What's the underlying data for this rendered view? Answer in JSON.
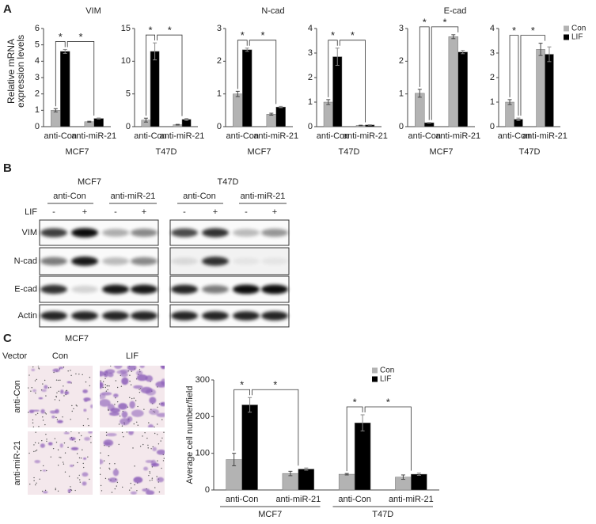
{
  "panel_a": {
    "label": "A",
    "titles": [
      "VIM",
      "N-cad",
      "E-cad"
    ]
  },
  "chart_data": [
    {
      "type": "bar",
      "ylabel": [
        "Relative mRNA",
        "expression levels"
      ],
      "xlabel": "MCF7",
      "categories": [
        "anti-Con",
        "anti-miR-21"
      ],
      "series": [
        {
          "color": "#b3b3b3",
          "values": [
            1.0,
            0.3
          ],
          "errors": [
            0.1,
            0.03
          ]
        },
        {
          "color": "#000000",
          "values": [
            4.6,
            0.5
          ],
          "errors": [
            0.12,
            0.03
          ]
        }
      ],
      "ylim": [
        0,
        6
      ],
      "yticks": [
        0,
        1,
        2,
        3,
        4,
        5,
        6
      ],
      "significance": [
        "*",
        "*"
      ]
    },
    {
      "type": "bar",
      "xlabel": "T47D",
      "categories": [
        "anti-Con",
        "anti-miR-21"
      ],
      "series": [
        {
          "color": "#b3b3b3",
          "values": [
            1.0,
            0.3
          ],
          "errors": [
            0.3,
            0.05
          ]
        },
        {
          "color": "#000000",
          "values": [
            11.5,
            1.1
          ],
          "errors": [
            1.3,
            0.15
          ]
        }
      ],
      "ylim": [
        0,
        15
      ],
      "yticks": [
        0,
        5,
        10,
        15
      ],
      "significance": [
        "*",
        "*"
      ]
    },
    {
      "type": "bar",
      "xlabel": "MCF7",
      "categories": [
        "anti-Con",
        "anti-miR-21"
      ],
      "series": [
        {
          "color": "#b3b3b3",
          "values": [
            1.0,
            0.38
          ],
          "errors": [
            0.08,
            0.03
          ]
        },
        {
          "color": "#000000",
          "values": [
            2.35,
            0.6
          ],
          "errors": [
            0.05,
            0.02
          ]
        }
      ],
      "ylim": [
        0,
        3
      ],
      "yticks": [
        0,
        1,
        2,
        3
      ],
      "significance": [
        "*",
        "*"
      ]
    },
    {
      "type": "bar",
      "xlabel": "T47D",
      "categories": [
        "anti-Con",
        "anti-miR-21"
      ],
      "series": [
        {
          "color": "#b3b3b3",
          "values": [
            1.0,
            0.05
          ],
          "errors": [
            0.1,
            0.01
          ]
        },
        {
          "color": "#000000",
          "values": [
            2.85,
            0.07
          ],
          "errors": [
            0.35,
            0.01
          ]
        }
      ],
      "ylim": [
        0,
        4
      ],
      "yticks": [
        0,
        1,
        2,
        3,
        4
      ],
      "significance": [
        "*",
        "*"
      ]
    },
    {
      "type": "bar",
      "xlabel": "MCF7",
      "categories": [
        "anti-Con",
        "anti-miR-21"
      ],
      "series": [
        {
          "color": "#b3b3b3",
          "values": [
            1.02,
            2.75
          ],
          "errors": [
            0.12,
            0.06
          ]
        },
        {
          "color": "#000000",
          "values": [
            0.12,
            2.28
          ],
          "errors": [
            0.01,
            0.05
          ]
        }
      ],
      "ylim": [
        0,
        3
      ],
      "yticks": [
        0,
        1,
        2,
        3
      ],
      "significance": [
        "*",
        "*"
      ]
    },
    {
      "type": "bar",
      "xlabel": "T47D",
      "categories": [
        "anti-Con",
        "anti-miR-21"
      ],
      "series": [
        {
          "name": "Con",
          "color": "#b3b3b3",
          "values": [
            1.0,
            3.15
          ],
          "errors": [
            0.1,
            0.25
          ]
        },
        {
          "name": "LIF",
          "color": "#000000",
          "values": [
            0.3,
            2.95
          ],
          "errors": [
            0.05,
            0.3
          ]
        }
      ],
      "ylim": [
        0,
        4
      ],
      "yticks": [
        0,
        1,
        2,
        3,
        4
      ],
      "significance": [
        "*",
        "*"
      ],
      "legend": "right"
    },
    {
      "type": "bar",
      "ylabel": "Average cell number/field",
      "categories": [
        "anti-Con",
        "anti-miR-21",
        "anti-Con",
        "anti-miR-21"
      ],
      "groups": [
        "MCF7",
        "T47D"
      ],
      "series": [
        {
          "name": "Con",
          "color": "#b3b3b3",
          "values": [
            83,
            45,
            43,
            35
          ],
          "errors": [
            17,
            6,
            2,
            6
          ]
        },
        {
          "name": "LIF",
          "color": "#000000",
          "values": [
            232,
            57,
            183,
            43
          ],
          "errors": [
            20,
            3,
            22,
            3
          ]
        }
      ],
      "ylim": [
        0,
        300
      ],
      "yticks": [
        0,
        100,
        200,
        300
      ],
      "significance": [
        "*",
        "*",
        "*",
        "*"
      ],
      "legend": "upper right"
    }
  ],
  "panel_b": {
    "label": "B",
    "cell_lines": [
      "MCF7",
      "T47D"
    ],
    "treatments": [
      "anti-Con",
      "anti-miR-21"
    ],
    "lif_label": "LIF",
    "lif_states": [
      "-",
      "+"
    ],
    "rows": [
      "VIM",
      "N-cad",
      "E-cad",
      "Actin"
    ]
  },
  "panel_c": {
    "label": "C",
    "title": "MCF7",
    "row_header": "Vector",
    "columns": [
      "Con",
      "LIF"
    ],
    "rows": [
      "anti-Con",
      "anti-miR-21"
    ]
  }
}
